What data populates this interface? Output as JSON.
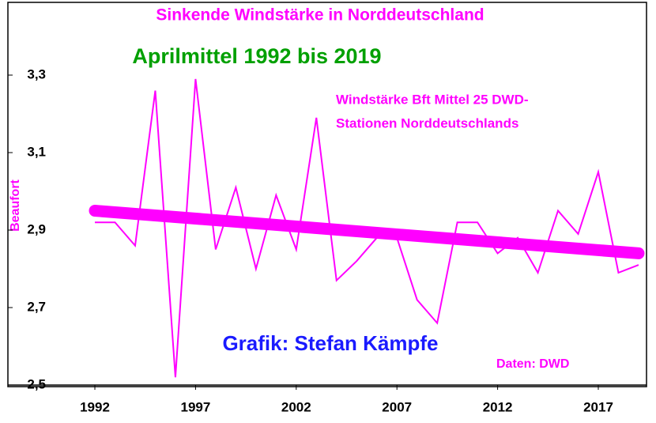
{
  "chart_data": {
    "type": "line",
    "title": "Sinkende Windstärke in Norddeutschland",
    "subtitle": "Aprilmittel 1992 bis 2019",
    "annotations": [
      "Windstärke Bft Mittel 25 DWD-",
      "Stationen Norddeutschlands"
    ],
    "credit": "Grafik: Stefan Kämpfe",
    "source": "Daten: DWD",
    "ylabel": "Beaufort",
    "x": [
      1992,
      1993,
      1994,
      1995,
      1996,
      1997,
      1998,
      1999,
      2000,
      2001,
      2002,
      2003,
      2004,
      2005,
      2006,
      2007,
      2008,
      2009,
      2010,
      2011,
      2012,
      2013,
      2014,
      2015,
      2016,
      2017,
      2018,
      2019
    ],
    "values": [
      2.92,
      2.92,
      2.86,
      3.26,
      2.52,
      3.29,
      2.85,
      3.01,
      2.8,
      2.99,
      2.85,
      3.19,
      2.77,
      2.82,
      2.88,
      2.88,
      2.72,
      2.66,
      2.92,
      2.92,
      2.84,
      2.88,
      2.79,
      2.95,
      2.89,
      3.05,
      2.79,
      2.81
    ],
    "color": "#ff00ff",
    "trend": {
      "x": [
        1992,
        2019
      ],
      "values": [
        2.95,
        2.84
      ],
      "color": "#ff00ff"
    },
    "xlim": [
      1990.5,
      2019.3
    ],
    "xticks": [
      1992,
      1997,
      2002,
      2007,
      2012,
      2017
    ],
    "ylim": [
      2.5,
      3.4
    ],
    "yticks": [
      {
        "value": 2.5,
        "label": "2,5"
      },
      {
        "value": 2.7,
        "label": "2,7"
      },
      {
        "value": 2.9,
        "label": "2,9"
      },
      {
        "value": 3.1,
        "label": "3,1"
      },
      {
        "value": 3.3,
        "label": "3,3"
      }
    ],
    "grid": false
  }
}
